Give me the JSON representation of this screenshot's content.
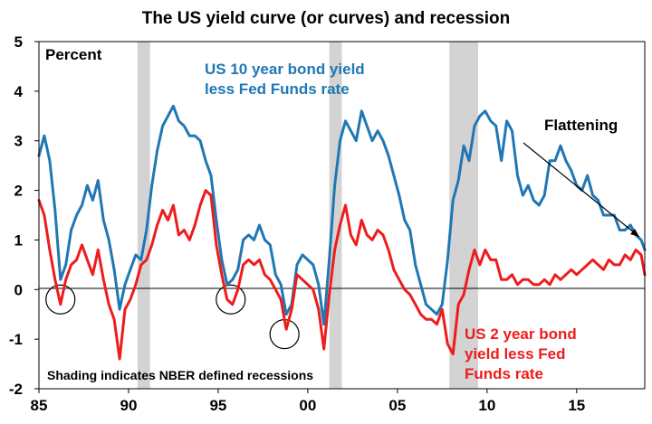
{
  "chart_data": {
    "type": "line",
    "title": "The US yield curve (or curves) and recession",
    "ylabel": "Percent",
    "ylim": [
      -2,
      5
    ],
    "xlim": [
      1985,
      2018.8
    ],
    "y_ticks": [
      -2,
      -1,
      0,
      1,
      2,
      3,
      4,
      5
    ],
    "x_ticks": [
      {
        "value": 1985,
        "label": "85"
      },
      {
        "value": 1990,
        "label": "90"
      },
      {
        "value": 1995,
        "label": "95"
      },
      {
        "value": 2000,
        "label": "00"
      },
      {
        "value": 2005,
        "label": "05"
      },
      {
        "value": 2010,
        "label": "10"
      },
      {
        "value": 2015,
        "label": "15"
      }
    ],
    "recessions": [
      [
        1990.5,
        1991.2
      ],
      [
        2001.2,
        2001.9
      ],
      [
        2007.9,
        2009.5
      ]
    ],
    "inversion_circles": [
      {
        "x": 1986.2,
        "y": -0.2
      },
      {
        "x": 1995.7,
        "y": -0.2
      },
      {
        "x": 1998.7,
        "y": -0.9
      }
    ],
    "series": [
      {
        "name": "US 10 year bond yield less Fed Funds rate",
        "color": "#1f77b4",
        "x": [
          1985.0,
          1985.3,
          1985.6,
          1985.9,
          1986.2,
          1986.5,
          1986.8,
          1987.1,
          1987.4,
          1987.7,
          1988.0,
          1988.3,
          1988.6,
          1988.9,
          1989.2,
          1989.5,
          1989.8,
          1990.1,
          1990.4,
          1990.7,
          1991.0,
          1991.3,
          1991.6,
          1991.9,
          1992.2,
          1992.5,
          1992.8,
          1993.1,
          1993.4,
          1993.7,
          1994.0,
          1994.3,
          1994.6,
          1994.9,
          1995.2,
          1995.5,
          1995.8,
          1996.1,
          1996.4,
          1996.7,
          1997.0,
          1997.3,
          1997.6,
          1997.9,
          1998.2,
          1998.5,
          1998.8,
          1999.1,
          1999.4,
          1999.7,
          2000.0,
          2000.3,
          2000.6,
          2000.9,
          2001.2,
          2001.5,
          2001.8,
          2002.1,
          2002.4,
          2002.7,
          2003.0,
          2003.3,
          2003.6,
          2003.9,
          2004.2,
          2004.5,
          2004.8,
          2005.1,
          2005.4,
          2005.7,
          2006.0,
          2006.3,
          2006.6,
          2006.9,
          2007.2,
          2007.5,
          2007.8,
          2008.1,
          2008.4,
          2008.7,
          2009.0,
          2009.3,
          2009.6,
          2009.9,
          2010.2,
          2010.5,
          2010.8,
          2011.1,
          2011.4,
          2011.7,
          2012.0,
          2012.3,
          2012.6,
          2012.9,
          2013.2,
          2013.5,
          2013.8,
          2014.1,
          2014.4,
          2014.7,
          2015.0,
          2015.3,
          2015.6,
          2015.9,
          2016.2,
          2016.5,
          2016.8,
          2017.1,
          2017.4,
          2017.7,
          2018.0,
          2018.3,
          2018.6,
          2018.8
        ],
        "y": [
          2.7,
          3.1,
          2.6,
          1.6,
          0.2,
          0.5,
          1.2,
          1.5,
          1.7,
          2.1,
          1.8,
          2.2,
          1.4,
          1.0,
          0.4,
          -0.4,
          0.1,
          0.4,
          0.7,
          0.6,
          1.2,
          2.1,
          2.8,
          3.3,
          3.5,
          3.7,
          3.4,
          3.3,
          3.1,
          3.1,
          3.0,
          2.6,
          2.3,
          1.4,
          0.6,
          0.1,
          0.2,
          0.4,
          1.0,
          1.1,
          1.0,
          1.3,
          1.0,
          0.9,
          0.3,
          0.1,
          -0.5,
          -0.3,
          0.5,
          0.7,
          0.6,
          0.5,
          0.1,
          -0.7,
          0.6,
          2.1,
          3.0,
          3.4,
          3.2,
          3.0,
          3.6,
          3.3,
          3.0,
          3.2,
          3.0,
          2.7,
          2.3,
          1.9,
          1.4,
          1.2,
          0.5,
          0.1,
          -0.3,
          -0.4,
          -0.5,
          -0.3,
          0.6,
          1.8,
          2.2,
          2.9,
          2.6,
          3.3,
          3.5,
          3.6,
          3.4,
          3.3,
          2.6,
          3.4,
          3.2,
          2.3,
          1.9,
          2.1,
          1.8,
          1.7,
          1.9,
          2.6,
          2.6,
          2.9,
          2.6,
          2.4,
          2.1,
          2.0,
          2.3,
          1.9,
          1.8,
          1.5,
          1.5,
          1.5,
          1.2,
          1.2,
          1.3,
          1.1,
          1.0,
          0.8
        ]
      },
      {
        "name": "US 2 year bond yield less Fed Funds rate",
        "color": "#ee1c1c",
        "x": [
          1985.0,
          1985.3,
          1985.6,
          1985.9,
          1986.2,
          1986.5,
          1986.8,
          1987.1,
          1987.4,
          1987.7,
          1988.0,
          1988.3,
          1988.6,
          1988.9,
          1989.2,
          1989.5,
          1989.8,
          1990.1,
          1990.4,
          1990.7,
          1991.0,
          1991.3,
          1991.6,
          1991.9,
          1992.2,
          1992.5,
          1992.8,
          1993.1,
          1993.4,
          1993.7,
          1994.0,
          1994.3,
          1994.6,
          1994.9,
          1995.2,
          1995.5,
          1995.8,
          1996.1,
          1996.4,
          1996.7,
          1997.0,
          1997.3,
          1997.6,
          1997.9,
          1998.2,
          1998.5,
          1998.8,
          1999.1,
          1999.4,
          1999.7,
          2000.0,
          2000.3,
          2000.6,
          2000.9,
          2001.2,
          2001.5,
          2001.8,
          2002.1,
          2002.4,
          2002.7,
          2003.0,
          2003.3,
          2003.6,
          2003.9,
          2004.2,
          2004.5,
          2004.8,
          2005.1,
          2005.4,
          2005.7,
          2006.0,
          2006.3,
          2006.6,
          2006.9,
          2007.2,
          2007.5,
          2007.8,
          2008.1,
          2008.4,
          2008.7,
          2009.0,
          2009.3,
          2009.6,
          2009.9,
          2010.2,
          2010.5,
          2010.8,
          2011.1,
          2011.4,
          2011.7,
          2012.0,
          2012.3,
          2012.6,
          2012.9,
          2013.2,
          2013.5,
          2013.8,
          2014.1,
          2014.4,
          2014.7,
          2015.0,
          2015.3,
          2015.6,
          2015.9,
          2016.2,
          2016.5,
          2016.8,
          2017.1,
          2017.4,
          2017.7,
          2018.0,
          2018.3,
          2018.6,
          2018.8
        ],
        "y": [
          1.8,
          1.5,
          0.8,
          0.2,
          -0.3,
          0.2,
          0.5,
          0.6,
          0.9,
          0.6,
          0.3,
          0.8,
          0.2,
          -0.3,
          -0.6,
          -1.4,
          -0.4,
          -0.2,
          0.1,
          0.5,
          0.6,
          0.9,
          1.3,
          1.6,
          1.4,
          1.7,
          1.1,
          1.2,
          1.0,
          1.3,
          1.7,
          2.0,
          1.9,
          0.9,
          0.3,
          -0.2,
          -0.3,
          0.0,
          0.5,
          0.6,
          0.5,
          0.6,
          0.3,
          0.2,
          0.0,
          -0.2,
          -0.8,
          -0.4,
          0.3,
          0.2,
          0.1,
          0.0,
          -0.4,
          -1.2,
          -0.1,
          0.8,
          1.3,
          1.7,
          1.1,
          0.9,
          1.4,
          1.1,
          1.0,
          1.2,
          1.1,
          0.8,
          0.4,
          0.2,
          0.0,
          -0.1,
          -0.3,
          -0.5,
          -0.6,
          -0.6,
          -0.7,
          -0.4,
          -1.1,
          -1.3,
          -0.3,
          -0.1,
          0.4,
          0.8,
          0.5,
          0.8,
          0.6,
          0.6,
          0.2,
          0.2,
          0.3,
          0.1,
          0.2,
          0.2,
          0.1,
          0.1,
          0.2,
          0.1,
          0.3,
          0.2,
          0.3,
          0.4,
          0.3,
          0.4,
          0.5,
          0.6,
          0.5,
          0.4,
          0.6,
          0.5,
          0.5,
          0.7,
          0.6,
          0.8,
          0.7,
          0.3
        ]
      }
    ],
    "annotations": {
      "blue_label_line1": "US 10 year bond yield",
      "blue_label_line2": "less Fed Funds rate",
      "red_label_line1": "US 2 year bond",
      "red_label_line2": "yield less Fed",
      "red_label_line3": "Funds rate",
      "flattening": "Flattening",
      "shading_note": "Shading indicates NBER defined recessions"
    },
    "colors": {
      "blue": "#1f77b4",
      "red": "#ee1c1c",
      "recession_shading": "#d3d3d3"
    }
  }
}
